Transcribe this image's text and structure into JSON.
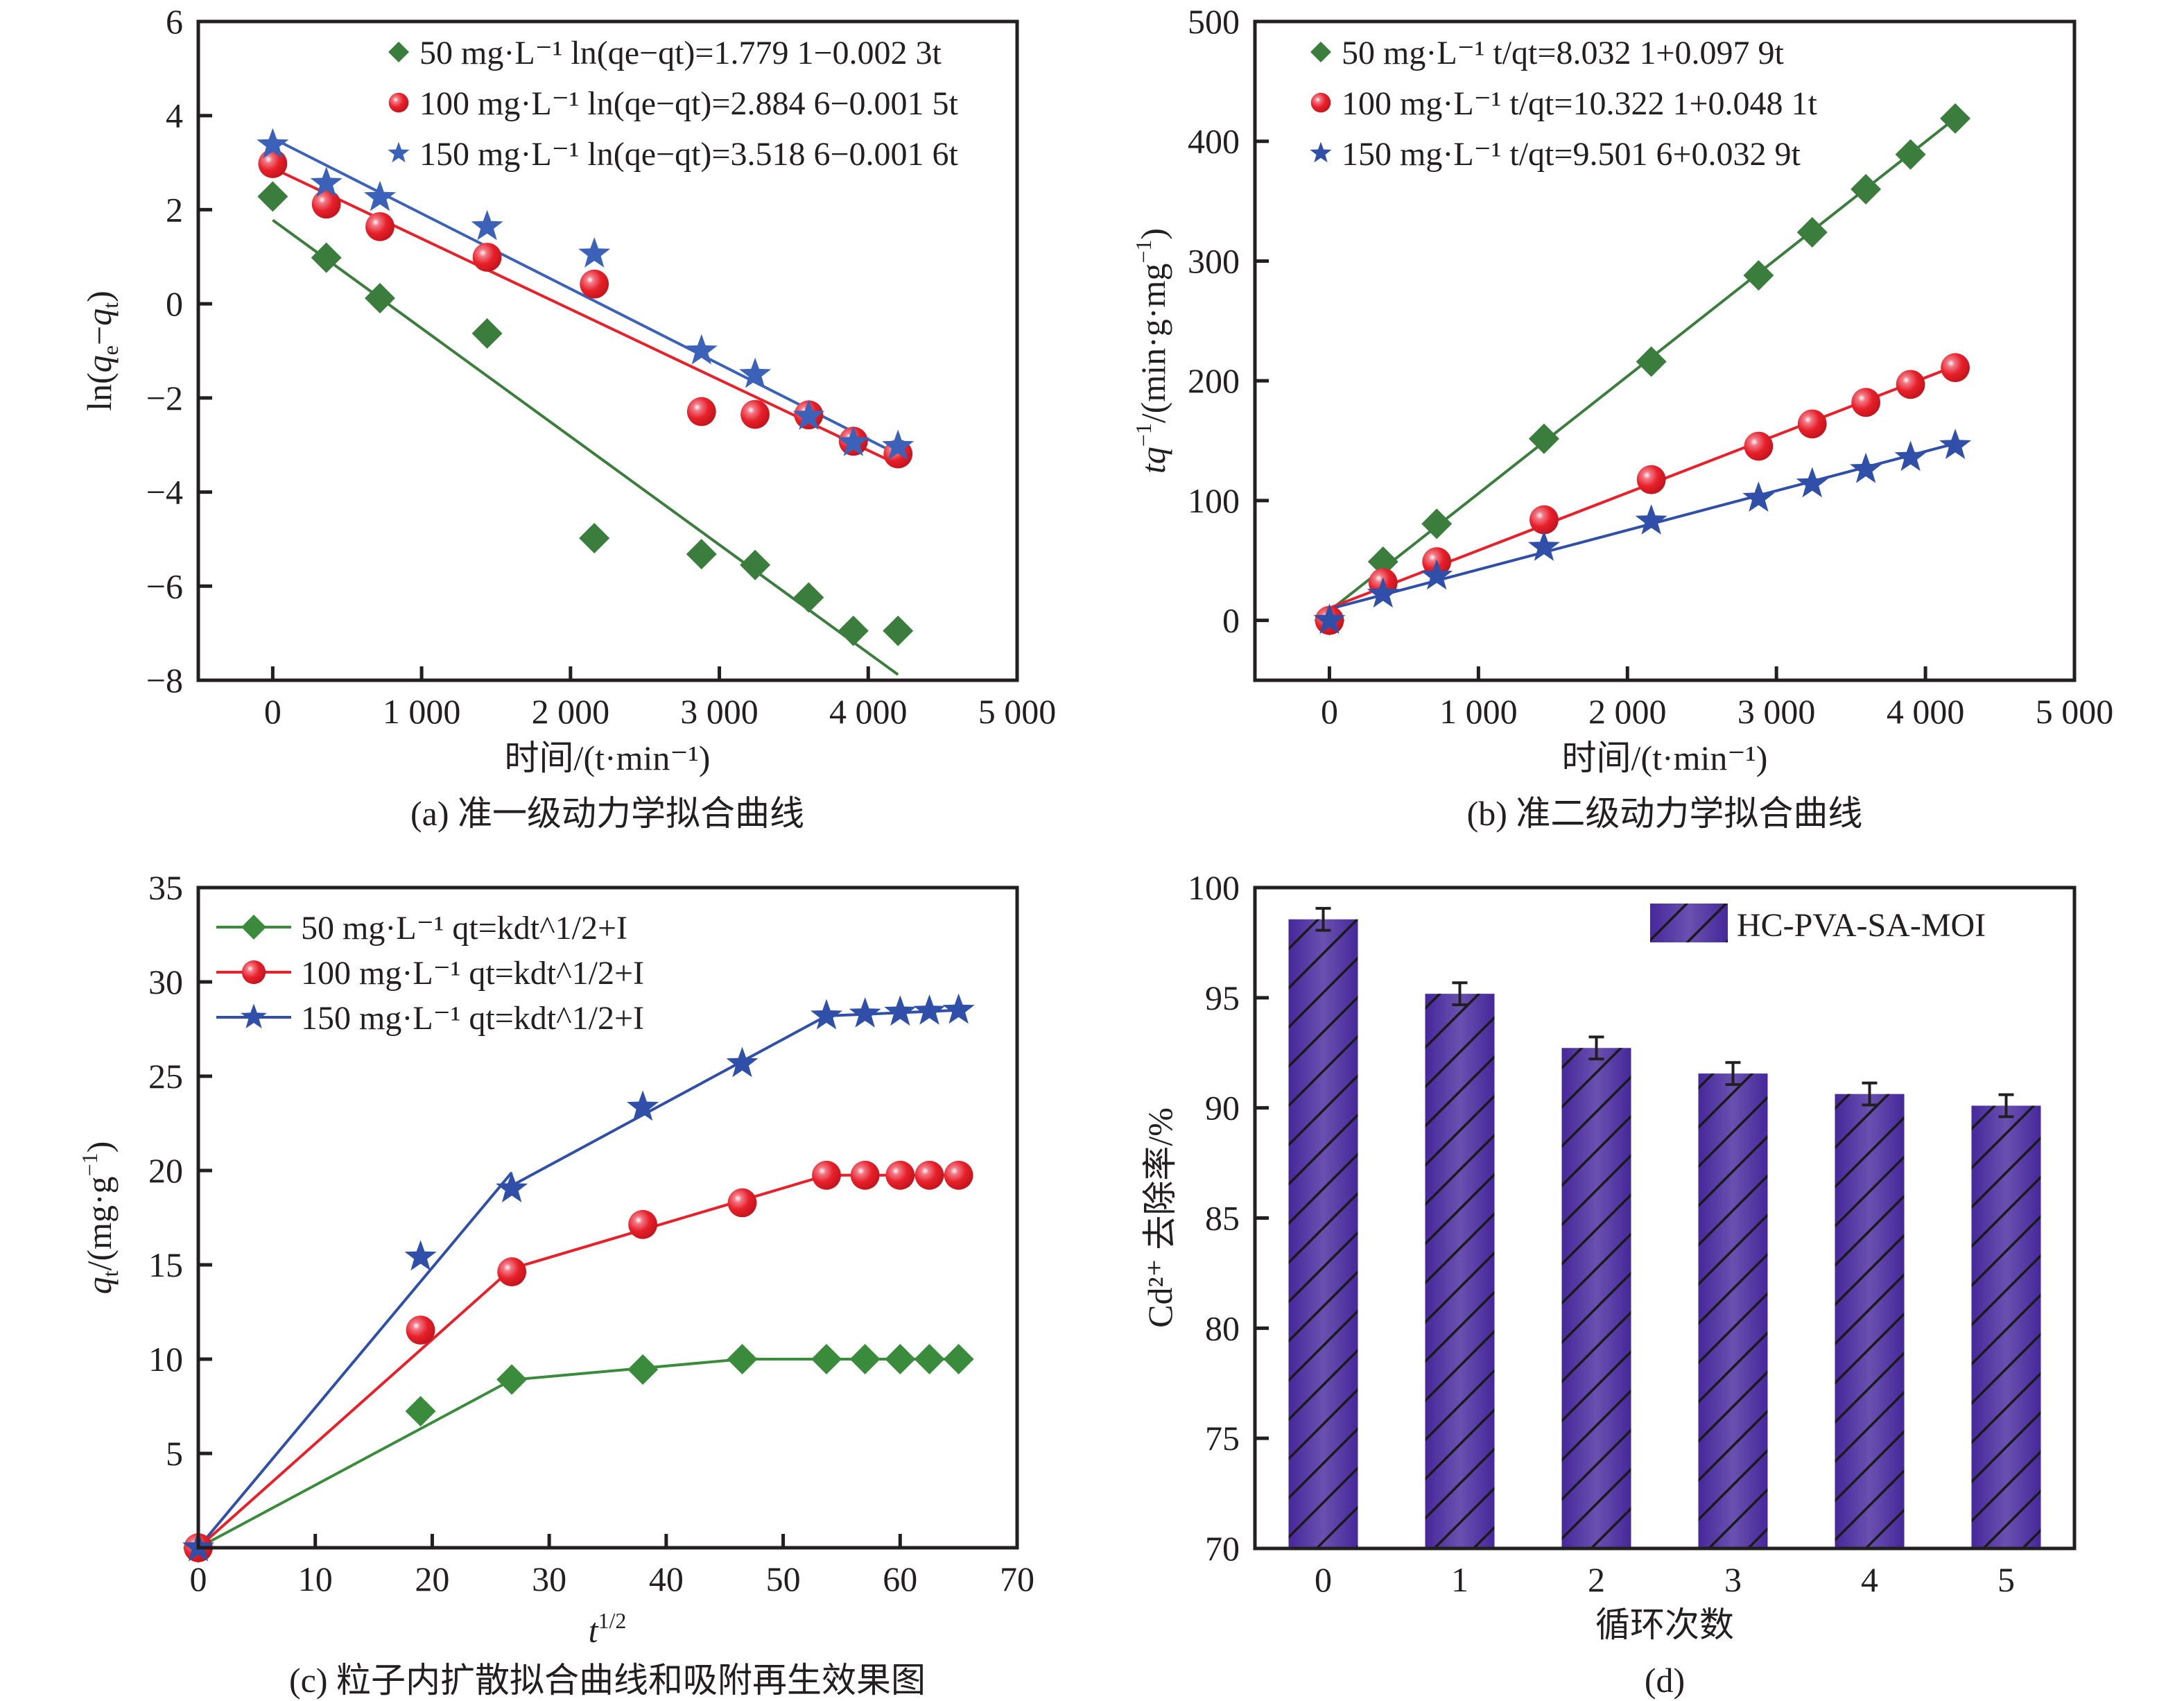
{
  "figure": {
    "panels": [
      "a",
      "b",
      "c",
      "d"
    ]
  },
  "chart_data": [
    {
      "id": "a",
      "type": "scatter",
      "caption": "(a) 准一级动力学拟合曲线",
      "xlabel": "时间/(t·min⁻¹)",
      "ylabel": "ln(qe−qt)",
      "xlim": [
        -500,
        5000
      ],
      "ylim": [
        -8,
        6
      ],
      "xticks": [
        0,
        1000,
        2000,
        3000,
        4000,
        5000
      ],
      "xtick_labels": [
        "0",
        "1 000",
        "2 000",
        "3 000",
        "4 000",
        "5 000"
      ],
      "yticks": [
        -8,
        -6,
        -4,
        -2,
        0,
        2,
        4,
        6
      ],
      "ytick_labels": [
        "−8",
        "−6",
        "−4",
        "−2",
        "0",
        "2",
        "4",
        "6"
      ],
      "legend_position": "top-right",
      "x": [
        0,
        360,
        720,
        1440,
        2160,
        2880,
        3240,
        3600,
        3900,
        4200
      ],
      "series": [
        {
          "name": "50 mg·L⁻¹",
          "equation": "ln(qe−qt)=1.779 1−0.002 3t",
          "marker": "diamond",
          "color": "#3a7d3c",
          "values": [
            2.28,
            0.98,
            0.12,
            -0.63,
            -4.98,
            -5.32,
            -5.55,
            -6.24,
            -6.95,
            -6.95
          ],
          "fit": {
            "intercept": 1.7791,
            "slope": -0.0023
          }
        },
        {
          "name": "100 mg·L⁻¹",
          "equation": "ln(qe−qt)=2.884 6−0.001 5t",
          "marker": "circle",
          "color": "#e8202a",
          "values": [
            2.98,
            2.12,
            1.64,
            0.99,
            0.42,
            -2.29,
            -2.35,
            -2.36,
            -2.92,
            -3.19
          ],
          "fit": {
            "intercept": 2.8846,
            "slope": -0.0015
          }
        },
        {
          "name": "150 mg·L⁻¹",
          "equation": "ln(qe−qt)=3.518 6−0.001 6t",
          "marker": "star",
          "color": "#3b62b8",
          "values": [
            3.38,
            2.56,
            2.26,
            1.64,
            1.06,
            -1.0,
            -1.5,
            -2.39,
            -2.95,
            -3.03
          ],
          "fit": {
            "intercept": 3.5186,
            "slope": -0.0016
          }
        }
      ]
    },
    {
      "id": "b",
      "type": "scatter",
      "caption": "(b) 准二级动力学拟合曲线",
      "xlabel": "时间/(t·min⁻¹)",
      "ylabel": "tq⁻¹/(min·g·mg⁻¹)",
      "xlim": [
        -500,
        5000
      ],
      "ylim": [
        -50,
        500
      ],
      "xticks": [
        0,
        1000,
        2000,
        3000,
        4000,
        5000
      ],
      "xtick_labels": [
        "0",
        "1 000",
        "2 000",
        "3 000",
        "4 000",
        "5 000"
      ],
      "yticks": [
        0,
        100,
        200,
        300,
        400,
        500
      ],
      "ytick_labels": [
        "0",
        "100",
        "200",
        "300",
        "400",
        "500"
      ],
      "legend_position": "top-left",
      "x": [
        0,
        360,
        720,
        1440,
        2160,
        2880,
        3240,
        3600,
        3900,
        4200
      ],
      "series": [
        {
          "name": "50 mg·L⁻¹",
          "equation": "t/qt=8.032 1+0.097 9t",
          "marker": "diamond",
          "color": "#3a7d3c",
          "values": [
            0,
            49,
            80.6,
            151.6,
            216,
            288,
            324,
            360,
            389,
            419
          ],
          "fit": {
            "intercept": 8.0321,
            "slope": 0.0979
          }
        },
        {
          "name": "100 mg·L⁻¹",
          "equation": "t/qt=10.322 1+0.048 1t",
          "marker": "circle",
          "color": "#e8202a",
          "values": [
            0,
            31.5,
            49,
            84,
            117.5,
            145.4,
            164,
            182,
            197,
            211
          ],
          "fit": {
            "intercept": 10.3221,
            "slope": 0.0481
          }
        },
        {
          "name": "150 mg·L⁻¹",
          "equation": "t/qt=9.501 6+0.032 9t",
          "marker": "star",
          "color": "#2f4fa8",
          "values": [
            0,
            22,
            37,
            61,
            83,
            102,
            114,
            126,
            136,
            146
          ],
          "fit": {
            "intercept": 9.5016,
            "slope": 0.0329
          }
        }
      ]
    },
    {
      "id": "c",
      "type": "line",
      "caption": "(c) 粒子内扩散拟合曲线和吸附再生效果图",
      "xlabel": "t^1/2",
      "ylabel": "qt/(mg·g⁻¹)",
      "xlim": [
        0,
        70
      ],
      "ylim": [
        0,
        35
      ],
      "xticks": [
        0,
        10,
        20,
        30,
        40,
        50,
        60,
        70
      ],
      "xtick_labels": [
        "0",
        "10",
        "20",
        "30",
        "40",
        "50",
        "60",
        "70"
      ],
      "yticks": [
        5,
        10,
        15,
        20,
        25,
        30,
        35
      ],
      "ytick_labels": [
        "5",
        "10",
        "15",
        "20",
        "25",
        "30",
        "35"
      ],
      "legend_position": "top-left",
      "x": [
        0,
        19,
        26.8,
        38,
        46.5,
        53.7,
        57,
        60,
        62.5,
        65
      ],
      "series": [
        {
          "name": "50 mg·L⁻¹",
          "equation": "qt=kdt^1/2+I",
          "marker": "diamond",
          "color": "#3a8c3c",
          "values": [
            0,
            7.24,
            8.92,
            9.45,
            10.0,
            10.0,
            10.0,
            10.0,
            10.0,
            10.0
          ],
          "fit_segments": [
            [
              [
                0,
                0
              ],
              [
                26.8,
                8.9
              ]
            ],
            [
              [
                26.8,
                8.9
              ],
              [
                46.5,
                10.0
              ]
            ],
            [
              [
                46.5,
                10.0
              ],
              [
                65,
                10.0
              ]
            ]
          ]
        },
        {
          "name": "100 mg·L⁻¹",
          "equation": "qt=kdt^1/2+I",
          "marker": "circle",
          "color": "#e8202a",
          "values": [
            0,
            11.54,
            14.63,
            17.14,
            18.29,
            19.75,
            19.75,
            19.75,
            19.75,
            19.75
          ],
          "fit_segments": [
            [
              [
                0,
                0
              ],
              [
                26.8,
                14.8
              ]
            ],
            [
              [
                26.8,
                14.8
              ],
              [
                53.7,
                19.75
              ]
            ],
            [
              [
                53.7,
                19.75
              ],
              [
                65,
                19.75
              ]
            ]
          ]
        },
        {
          "name": "150 mg·L⁻¹",
          "equation": "qt=kdt^1/2+I",
          "marker": "star",
          "color": "#2f4fa8",
          "values": [
            0,
            15.42,
            19.03,
            23.36,
            25.67,
            28.2,
            28.3,
            28.4,
            28.45,
            28.5
          ],
          "fit_segments": [
            [
              [
                0,
                0
              ],
              [
                26.8,
                19.9
              ]
            ],
            [
              [
                26.8,
                19.2
              ],
              [
                53.7,
                28.2
              ]
            ],
            [
              [
                53.7,
                28.2
              ],
              [
                65,
                28.5
              ]
            ]
          ]
        }
      ]
    },
    {
      "id": "d",
      "type": "bar",
      "caption": "(d)",
      "xlabel": "循环次数",
      "ylabel": "Cd²⁺ 去除率/%",
      "ylim": [
        70,
        100
      ],
      "yticks": [
        70,
        75,
        80,
        85,
        90,
        95,
        100
      ],
      "ytick_labels": [
        "70",
        "75",
        "80",
        "85",
        "90",
        "95",
        "100"
      ],
      "categories": [
        "0",
        "1",
        "2",
        "3",
        "4",
        "5"
      ],
      "legend_position": "top-right",
      "series": [
        {
          "name": "HC-PVA-SA-MOI",
          "color": "#5a3ea6",
          "values": [
            98.56,
            95.18,
            92.72,
            91.56,
            90.63,
            90.1
          ],
          "errors": [
            0.5,
            0.5,
            0.5,
            0.5,
            0.5,
            0.5
          ]
        }
      ]
    }
  ]
}
